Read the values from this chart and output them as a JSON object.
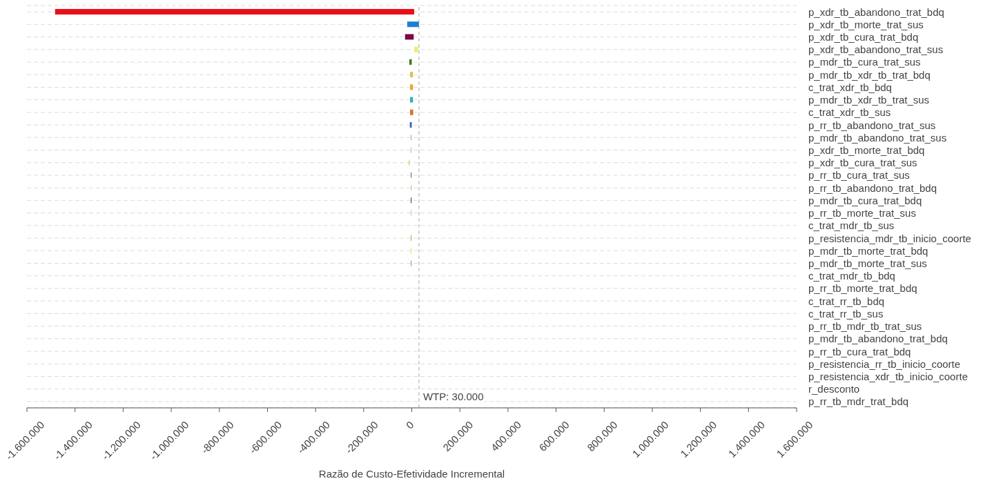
{
  "chart_data": {
    "type": "bar",
    "orientation": "horizontal",
    "xlabel": "Razão de Custo-Efetividade Incremental",
    "categories": [
      "p_xdr_tb_abandono_trat_bdq",
      "p_xdr_tb_morte_trat_sus",
      "p_xdr_tb_cura_trat_bdq",
      "p_xdr_tb_abandono_trat_sus",
      "p_mdr_tb_cura_trat_sus",
      "p_mdr_tb_xdr_tb_trat_bdq",
      "c_trat_xdr_tb_bdq",
      "p_mdr_tb_xdr_tb_trat_sus",
      "c_trat_xdr_tb_sus",
      "p_rr_tb_abandono_trat_sus",
      "p_mdr_tb_abandono_trat_sus",
      "p_xdr_tb_morte_trat_bdq",
      "p_xdr_tb_cura_trat_sus",
      "p_rr_tb_cura_trat_sus",
      "p_rr_tb_abandono_trat_bdq",
      "p_mdr_tb_cura_trat_bdq",
      "p_rr_tb_morte_trat_sus",
      "c_trat_mdr_tb_sus",
      "p_resistencia_mdr_tb_inicio_coorte",
      "p_mdr_tb_morte_trat_bdq",
      "p_mdr_tb_morte_trat_sus",
      "c_trat_mdr_tb_bdq",
      "p_rr_tb_morte_trat_bdq",
      "c_trat_rr_tb_bdq",
      "c_trat_rr_tb_sus",
      "p_rr_tb_mdr_tb_trat_sus",
      "p_mdr_tb_abandono_trat_bdq",
      "p_rr_tb_cura_trat_bdq",
      "p_resistencia_rr_tb_inicio_coorte",
      "p_resistencia_xdr_tb_inicio_coorte",
      "r_desconto",
      "p_rr_tb_mdr_trat_bdq"
    ],
    "base": [
      -1483000,
      -19000,
      -28000,
      10000,
      -10000,
      -7000,
      -7000,
      -7000,
      -7000,
      -8000,
      -4000,
      -4000,
      -12000,
      -4000,
      -4000,
      -4000,
      -4000,
      null,
      -4000,
      -4000,
      -4000,
      null,
      null,
      null,
      null,
      null,
      null,
      null,
      null,
      null,
      null,
      null
    ],
    "values": [
      1493000,
      49000,
      36000,
      17000,
      10000,
      12000,
      12000,
      12000,
      13000,
      8000,
      3000,
      3000,
      3000,
      3000,
      3000,
      3000,
      3000,
      null,
      3000,
      3000,
      3000,
      null,
      null,
      null,
      null,
      null,
      null,
      null,
      null,
      null,
      null,
      null
    ],
    "colors": [
      "#e8101a",
      "#1a7fd4",
      "#7a0a40",
      "#e8f07a",
      "#3a7a20",
      "#d8c060",
      "#f0a030",
      "#30b0b0",
      "#d87030",
      "#4060b0",
      "#8aa8d8",
      "#d8b080",
      "#c8c840",
      "#407040",
      "#e0b070",
      "#303070",
      "#f0b080",
      null,
      "#90b040",
      "#e0e040",
      "#8090b0",
      null,
      null,
      null,
      null,
      null,
      null,
      null,
      null,
      null,
      null,
      null
    ],
    "xlim": [
      -1600000,
      1600000
    ],
    "xticks": [
      {
        "value": -1600000,
        "label": "-1.600.000"
      },
      {
        "value": -1400000,
        "label": "-1.400.000"
      },
      {
        "value": -1200000,
        "label": "-1.200.000"
      },
      {
        "value": -1000000,
        "label": "-1.000.000"
      },
      {
        "value": -800000,
        "label": "-800.000"
      },
      {
        "value": -600000,
        "label": "-600.000"
      },
      {
        "value": -400000,
        "label": "-400.000"
      },
      {
        "value": -200000,
        "label": "-200.000"
      },
      0,
      {
        "value": 200000,
        "label": "200.000"
      },
      {
        "value": 400000,
        "label": "400.000"
      },
      {
        "value": 600000,
        "label": "600.000"
      },
      {
        "value": 800000,
        "label": "800.000"
      },
      {
        "value": 1000000,
        "label": "1.000.000"
      },
      {
        "value": 1200000,
        "label": "1.200.000"
      },
      {
        "value": 1400000,
        "label": "1.400.000"
      },
      {
        "value": 1600000,
        "label": "1.600.000"
      }
    ],
    "grid": "y",
    "ref_lines": [
      {
        "axis": "x",
        "value": 30000,
        "label": "WTP: 30.000",
        "color": "#a8a8a8",
        "line_style": "dashed"
      }
    ]
  }
}
